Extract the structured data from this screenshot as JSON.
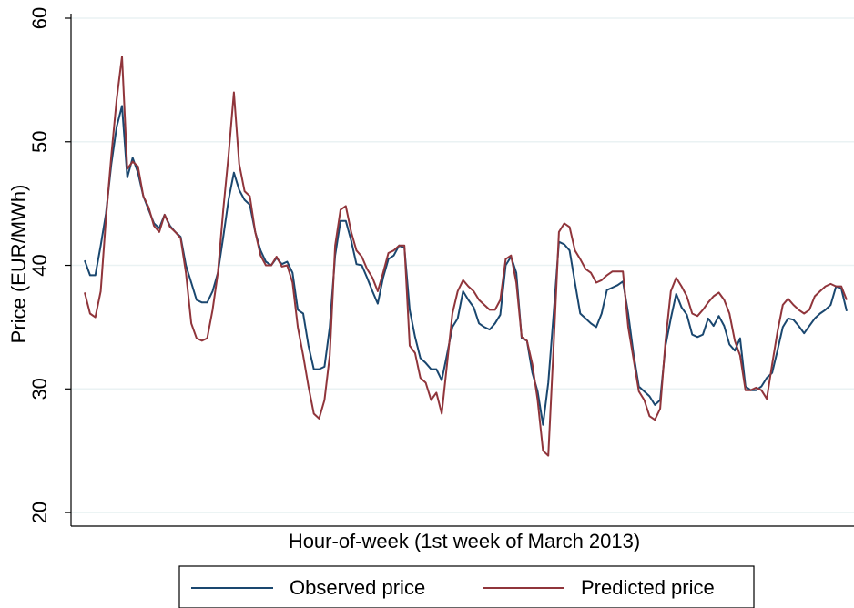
{
  "chart_data": {
    "type": "line",
    "ylabel": "Price (EUR/MWh)",
    "xlabel": "Hour-of-week (1st week of March 2013)",
    "ylim": [
      18.9,
      60
    ],
    "yticks": [
      20,
      30,
      40,
      50,
      60
    ],
    "grid": true,
    "legend": "bottom",
    "series": [
      {
        "name": "Observed price",
        "color": "#1a476f",
        "values": [
          40.4,
          39.2,
          39.2,
          41.6,
          44.2,
          48.2,
          51.2,
          52.9,
          47.1,
          48.7,
          47.5,
          45.6,
          44.5,
          43.4,
          43.0,
          44.1,
          43.2,
          42.7,
          42.3,
          40.0,
          38.6,
          37.2,
          37.0,
          37.0,
          37.9,
          39.4,
          42.3,
          45.3,
          47.5,
          46.1,
          45.3,
          44.9,
          42.7,
          41.2,
          40.3,
          40.0,
          40.6,
          40.1,
          40.3,
          39.4,
          36.4,
          36.1,
          33.5,
          31.6,
          31.6,
          31.8,
          35.0,
          40.8,
          43.6,
          43.6,
          42.0,
          40.1,
          40.0,
          39.0,
          37.9,
          36.9,
          39.0,
          40.5,
          40.8,
          41.6,
          41.4,
          36.4,
          34.2,
          32.5,
          32.1,
          31.6,
          31.6,
          30.7,
          32.8,
          35.0,
          35.7,
          37.9,
          37.2,
          36.6,
          35.3,
          35.0,
          34.8,
          35.3,
          36.0,
          40.0,
          40.7,
          39.4,
          34.1,
          33.9,
          31.3,
          29.8,
          27.1,
          30.5,
          36.1,
          41.9,
          41.7,
          41.2,
          38.6,
          36.1,
          35.7,
          35.3,
          35.0,
          36.1,
          38.0,
          38.2,
          38.4,
          38.7,
          36.1,
          32.8,
          30.2,
          29.8,
          29.4,
          28.7,
          29.1,
          33.5,
          35.7,
          37.7,
          36.6,
          36.0,
          34.4,
          34.2,
          34.4,
          35.7,
          35.1,
          35.9,
          35.1,
          33.6,
          33.1,
          34.1,
          30.2,
          29.9,
          29.9,
          30.2,
          30.9,
          31.3,
          33.1,
          35.0,
          35.7,
          35.6,
          35.1,
          34.5,
          35.1,
          35.7,
          36.1,
          36.4,
          36.8,
          38.3,
          38.1,
          36.3
        ]
      },
      {
        "name": "Predicted price",
        "color": "#90353b",
        "values": [
          37.8,
          36.1,
          35.8,
          37.9,
          43.8,
          48.9,
          53.4,
          56.9,
          47.8,
          48.4,
          48.0,
          45.6,
          44.7,
          43.2,
          42.7,
          44.1,
          43.1,
          42.7,
          42.2,
          39.4,
          35.3,
          34.1,
          33.9,
          34.1,
          36.4,
          39.4,
          44.5,
          48.9,
          54.0,
          48.2,
          46.0,
          45.6,
          42.7,
          40.8,
          40.0,
          40.0,
          40.7,
          39.9,
          40.0,
          38.6,
          35.0,
          32.7,
          30.2,
          28.0,
          27.6,
          29.1,
          32.7,
          41.6,
          44.5,
          44.8,
          42.7,
          41.2,
          40.7,
          39.7,
          39.0,
          37.9,
          39.4,
          41.0,
          41.2,
          41.6,
          41.6,
          33.5,
          32.9,
          30.9,
          30.5,
          29.1,
          29.7,
          28.0,
          32.0,
          36.1,
          37.9,
          38.8,
          38.3,
          37.9,
          37.2,
          36.8,
          36.4,
          36.4,
          37.2,
          40.5,
          40.8,
          38.6,
          34.2,
          33.9,
          32.0,
          29.1,
          25.0,
          24.6,
          33.5,
          42.7,
          43.4,
          43.1,
          41.2,
          40.5,
          39.7,
          39.4,
          38.6,
          38.8,
          39.2,
          39.5,
          39.5,
          39.5,
          35.0,
          32.4,
          29.8,
          29.1,
          27.8,
          27.5,
          28.4,
          33.9,
          37.9,
          39.0,
          38.3,
          37.5,
          36.1,
          35.9,
          36.4,
          37.0,
          37.5,
          37.8,
          37.2,
          36.1,
          33.9,
          32.7,
          29.9,
          29.9,
          30.1,
          29.9,
          29.2,
          32.0,
          34.6,
          36.8,
          37.3,
          36.8,
          36.4,
          36.1,
          36.4,
          37.5,
          37.9,
          38.3,
          38.5,
          38.3,
          38.3,
          37.2
        ]
      }
    ]
  }
}
